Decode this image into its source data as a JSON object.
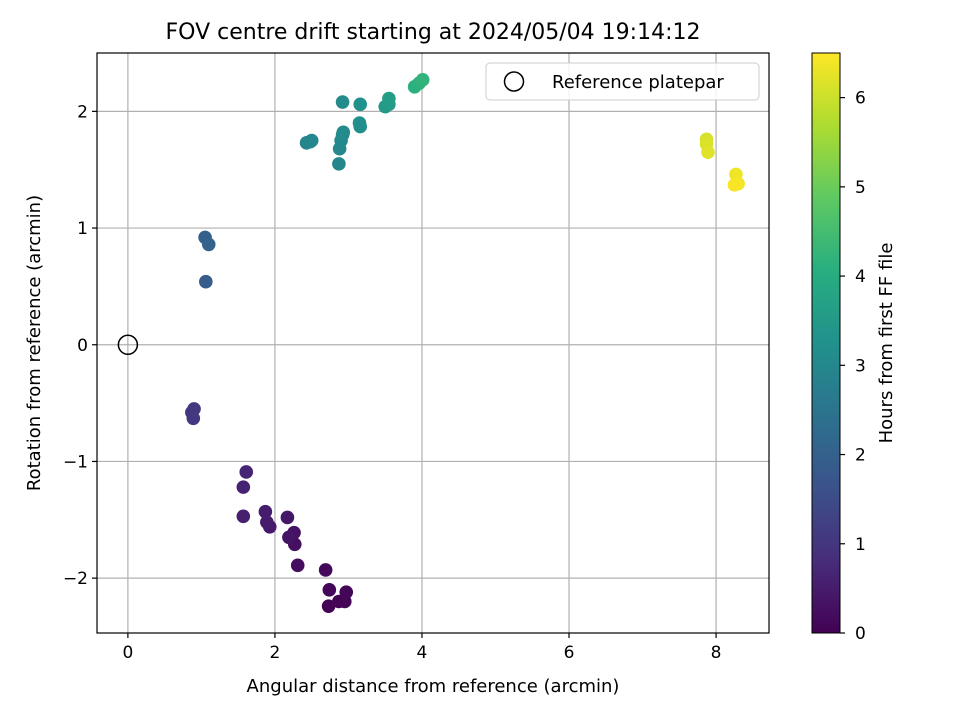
{
  "chart_data": {
    "type": "scatter",
    "title": "FOV centre drift starting at 2024/05/04 19:14:12",
    "xlabel": "Angular distance from reference (arcmin)",
    "ylabel": "Rotation from reference (arcmin)",
    "xlim": [
      -0.42,
      8.72
    ],
    "ylim": [
      -2.47,
      2.5
    ],
    "xticks": [
      0,
      2,
      4,
      6,
      8
    ],
    "xtick_labels": [
      "0",
      "2",
      "4",
      "6",
      "8"
    ],
    "yticks": [
      -2,
      -1,
      0,
      1,
      2
    ],
    "ytick_labels": [
      "−2",
      "−1",
      "0",
      "1",
      "2"
    ],
    "grid": true,
    "legend": {
      "placement": "top-right",
      "entries": [
        {
          "label": "Reference platepar",
          "marker": "open-circle"
        }
      ]
    },
    "reference_point": {
      "x": 0,
      "y": 0,
      "label": "Reference platepar"
    },
    "colorbar": {
      "label": "Hours from first FF file",
      "colormap": "viridis",
      "range": [
        0,
        6.5
      ],
      "ticks": [
        0,
        1,
        2,
        3,
        4,
        5,
        6
      ],
      "tick_labels": [
        "0",
        "1",
        "2",
        "3",
        "4",
        "5",
        "6"
      ]
    },
    "points": [
      {
        "x": 2.73,
        "y": -2.24,
        "t": 0.02
      },
      {
        "x": 2.87,
        "y": -2.2,
        "t": 0.05
      },
      {
        "x": 2.95,
        "y": -2.2,
        "t": 0.07
      },
      {
        "x": 2.97,
        "y": -2.12,
        "t": 0.1
      },
      {
        "x": 2.74,
        "y": -2.1,
        "t": 0.12
      },
      {
        "x": 2.69,
        "y": -1.93,
        "t": 0.15
      },
      {
        "x": 2.31,
        "y": -1.89,
        "t": 0.22
      },
      {
        "x": 2.27,
        "y": -1.71,
        "t": 0.28
      },
      {
        "x": 2.26,
        "y": -1.61,
        "t": 0.32
      },
      {
        "x": 2.19,
        "y": -1.65,
        "t": 0.36
      },
      {
        "x": 2.17,
        "y": -1.48,
        "t": 0.4
      },
      {
        "x": 1.93,
        "y": -1.56,
        "t": 0.45
      },
      {
        "x": 1.89,
        "y": -1.52,
        "t": 0.48
      },
      {
        "x": 1.87,
        "y": -1.43,
        "t": 0.52
      },
      {
        "x": 1.57,
        "y": -1.47,
        "t": 0.57
      },
      {
        "x": 1.57,
        "y": -1.22,
        "t": 0.62
      },
      {
        "x": 1.61,
        "y": -1.09,
        "t": 0.66
      },
      {
        "x": 0.9,
        "y": -0.55,
        "t": 1.02
      },
      {
        "x": 0.87,
        "y": -0.58,
        "t": 1.05
      },
      {
        "x": 0.89,
        "y": -0.63,
        "t": 1.08
      },
      {
        "x": 1.06,
        "y": 0.54,
        "t": 1.9
      },
      {
        "x": 1.05,
        "y": 0.92,
        "t": 2.0
      },
      {
        "x": 1.1,
        "y": 0.86,
        "t": 2.05
      },
      {
        "x": 2.43,
        "y": 1.73,
        "t": 2.9
      },
      {
        "x": 2.48,
        "y": 1.74,
        "t": 2.93
      },
      {
        "x": 2.5,
        "y": 1.75,
        "t": 2.95
      },
      {
        "x": 2.87,
        "y": 1.55,
        "t": 3.0
      },
      {
        "x": 2.88,
        "y": 1.68,
        "t": 3.02
      },
      {
        "x": 2.9,
        "y": 1.75,
        "t": 3.04
      },
      {
        "x": 2.92,
        "y": 1.8,
        "t": 3.06
      },
      {
        "x": 2.93,
        "y": 1.82,
        "t": 3.08
      },
      {
        "x": 2.92,
        "y": 2.08,
        "t": 3.1
      },
      {
        "x": 3.16,
        "y": 1.87,
        "t": 3.2
      },
      {
        "x": 3.15,
        "y": 1.9,
        "t": 3.22
      },
      {
        "x": 3.16,
        "y": 2.06,
        "t": 3.25
      },
      {
        "x": 3.5,
        "y": 2.04,
        "t": 3.5
      },
      {
        "x": 3.55,
        "y": 2.06,
        "t": 3.55
      },
      {
        "x": 3.55,
        "y": 2.11,
        "t": 3.6
      },
      {
        "x": 3.9,
        "y": 2.21,
        "t": 4.1
      },
      {
        "x": 3.96,
        "y": 2.24,
        "t": 4.15
      },
      {
        "x": 4.01,
        "y": 2.27,
        "t": 4.2
      },
      {
        "x": 7.87,
        "y": 1.76,
        "t": 6.1
      },
      {
        "x": 7.87,
        "y": 1.72,
        "t": 6.15
      },
      {
        "x": 7.89,
        "y": 1.65,
        "t": 6.2
      },
      {
        "x": 8.27,
        "y": 1.46,
        "t": 6.35
      },
      {
        "x": 8.3,
        "y": 1.38,
        "t": 6.4
      },
      {
        "x": 8.25,
        "y": 1.37,
        "t": 6.45
      }
    ]
  }
}
